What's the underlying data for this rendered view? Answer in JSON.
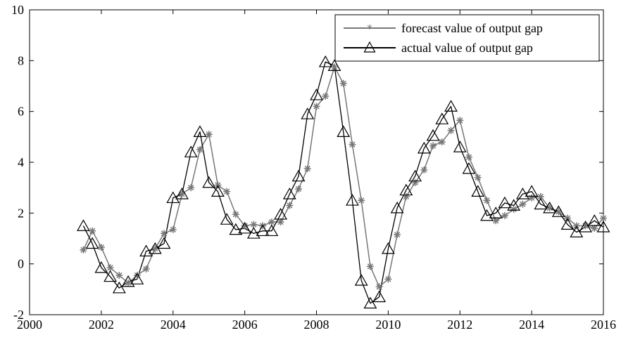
{
  "chart_data": {
    "type": "line",
    "title": "",
    "xlabel": "",
    "ylabel": "",
    "xlim": [
      2000,
      2016
    ],
    "ylim": [
      -2,
      10
    ],
    "xticks": [
      2000,
      2002,
      2004,
      2006,
      2008,
      2010,
      2012,
      2014,
      2016
    ],
    "yticks": [
      -2,
      0,
      2,
      4,
      6,
      8,
      10
    ],
    "grid": false,
    "legend_position": "top-right",
    "series": [
      {
        "name": "forecast value of output gap",
        "color": "#777777",
        "marker": "asterisk",
        "x": [
          2001.5,
          2001.75,
          2002.0,
          2002.25,
          2002.5,
          2002.75,
          2003.0,
          2003.25,
          2003.5,
          2003.75,
          2004.0,
          2004.25,
          2004.5,
          2004.75,
          2005.0,
          2005.25,
          2005.5,
          2005.75,
          2006.0,
          2006.25,
          2006.5,
          2006.75,
          2007.0,
          2007.25,
          2007.5,
          2007.75,
          2008.0,
          2008.25,
          2008.5,
          2008.75,
          2009.0,
          2009.25,
          2009.5,
          2009.75,
          2010.0,
          2010.25,
          2010.5,
          2010.75,
          2011.0,
          2011.25,
          2011.5,
          2011.75,
          2012.0,
          2012.25,
          2012.5,
          2012.75,
          2013.0,
          2013.25,
          2013.5,
          2013.75,
          2014.0,
          2014.25,
          2014.5,
          2014.75,
          2015.0,
          2015.25,
          2015.5,
          2015.75,
          2016.0
        ],
        "values": [
          0.55,
          1.3,
          0.65,
          -0.15,
          -0.45,
          -0.75,
          -0.45,
          -0.2,
          0.6,
          1.2,
          1.35,
          2.75,
          3.0,
          4.5,
          5.1,
          3.1,
          2.85,
          1.95,
          1.5,
          1.55,
          1.5,
          1.65,
          1.65,
          2.3,
          2.95,
          3.75,
          6.2,
          6.6,
          7.75,
          7.1,
          4.7,
          2.5,
          -0.1,
          -0.9,
          -0.6,
          1.15,
          2.65,
          3.2,
          3.7,
          4.65,
          4.8,
          5.25,
          5.65,
          4.2,
          3.4,
          2.5,
          1.7,
          1.9,
          2.15,
          2.35,
          2.6,
          2.65,
          2.2,
          2.05,
          1.8,
          1.5,
          1.5,
          1.4,
          1.8
        ]
      },
      {
        "name": "actual value of output gap",
        "color": "#000000",
        "marker": "triangle",
        "x": [
          2001.5,
          2001.75,
          2002.0,
          2002.25,
          2002.5,
          2002.75,
          2003.0,
          2003.25,
          2003.5,
          2003.75,
          2004.0,
          2004.25,
          2004.5,
          2004.75,
          2005.0,
          2005.25,
          2005.5,
          2005.75,
          2006.0,
          2006.25,
          2006.5,
          2006.75,
          2007.0,
          2007.25,
          2007.5,
          2007.75,
          2008.0,
          2008.25,
          2008.5,
          2008.75,
          2009.0,
          2009.25,
          2009.5,
          2009.75,
          2010.0,
          2010.25,
          2010.5,
          2010.75,
          2011.0,
          2011.25,
          2011.5,
          2011.75,
          2012.0,
          2012.25,
          2012.5,
          2012.75,
          2013.0,
          2013.25,
          2013.5,
          2013.75,
          2014.0,
          2014.25,
          2014.5,
          2014.75,
          2015.0,
          2015.25,
          2015.5,
          2015.75,
          2016.0
        ],
        "values": [
          1.5,
          0.8,
          -0.15,
          -0.5,
          -0.95,
          -0.7,
          -0.6,
          0.5,
          0.6,
          0.8,
          2.6,
          2.75,
          4.4,
          5.2,
          3.2,
          2.85,
          1.75,
          1.35,
          1.4,
          1.2,
          1.3,
          1.3,
          1.95,
          2.75,
          3.45,
          5.9,
          6.65,
          7.95,
          7.8,
          5.2,
          2.5,
          -0.65,
          -1.55,
          -1.3,
          0.6,
          2.2,
          2.9,
          3.45,
          4.55,
          5.05,
          5.7,
          6.2,
          4.6,
          3.75,
          2.85,
          1.9,
          2.0,
          2.4,
          2.3,
          2.75,
          2.85,
          2.35,
          2.2,
          2.05,
          1.55,
          1.25,
          1.45,
          1.7,
          1.45
        ]
      }
    ]
  }
}
